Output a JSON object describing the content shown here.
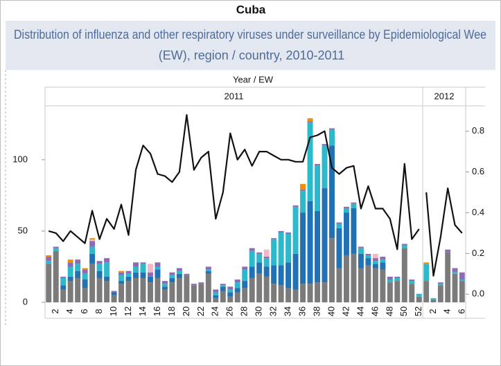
{
  "chart_data": {
    "type": "bar-line",
    "title": "Cuba",
    "subtitle": [
      "Distribution of influenza and other respiratory viruses under surveillance by Epidemiological Wee",
      "(EW), region / country, 2010-2011"
    ],
    "x_title": "Year  /  EW",
    "ylim": [
      0,
      130
    ],
    "yticks": [
      0,
      50,
      100
    ],
    "y2lim": [
      -0.04,
      0.87
    ],
    "y2ticks": [
      {
        "value": 0,
        "label": "0.0"
      },
      0.2,
      0.4,
      0.6,
      0.8
    ],
    "line_color": "#111111",
    "panels": [
      {
        "label": "2011",
        "categories": [
          null,
          "2",
          null,
          "4",
          null,
          "6",
          null,
          "8",
          null,
          "10",
          null,
          "12",
          null,
          "14",
          null,
          "16",
          null,
          "18",
          null,
          "20",
          null,
          "22",
          null,
          "24",
          null,
          "26",
          null,
          "28",
          null,
          "30",
          null,
          "32",
          null,
          "34",
          null,
          "36",
          null,
          "38",
          null,
          "40",
          null,
          "42",
          null,
          "44",
          null,
          "46",
          null,
          "48",
          null,
          "50",
          null,
          "52"
        ],
        "series": [
          {
            "color": "#7b7b7b",
            "values": [
              27,
              36,
              9,
              15,
              17,
              10,
              27,
              17,
              15,
              5,
              13,
              15,
              17,
              17,
              14,
              17,
              9,
              14,
              17,
              19,
              12,
              13,
              20,
              3,
              8,
              4,
              7,
              10,
              17,
              20,
              18,
              13,
              12,
              10,
              9,
              13,
              13,
              14,
              14,
              45,
              24,
              33,
              34,
              24,
              26,
              24,
              23,
              14,
              15,
              38,
              13,
              4
            ]
          },
          {
            "color": "#2171b5",
            "values": [
              0,
              0,
              3,
              3,
              5,
              6,
              7,
              5,
              3,
              2,
              2,
              3,
              4,
              4,
              4,
              6,
              2,
              3,
              3,
              0,
              0,
              0,
              2,
              2,
              3,
              3,
              3,
              5,
              8,
              8,
              7,
              13,
              14,
              18,
              25,
              50,
              58,
              50,
              66,
              65,
              28,
              30,
              32,
              10,
              5,
              3,
              5,
              0,
              0,
              0,
              0,
              0
            ]
          },
          {
            "color": "#2cb9cc",
            "values": [
              2,
              2,
              5,
              7,
              5,
              4,
              5,
              5,
              10,
              0,
              4,
              2,
              4,
              6,
              0,
              2,
              2,
              2,
              2,
              0,
              0,
              0,
              1,
              2,
              1,
              2,
              4,
              8,
              11,
              6,
              6,
              18,
              23,
              20,
              33,
              15,
              55,
              32,
              30,
              11,
              3,
              3,
              3,
              4,
              2,
              2,
              2,
              2,
              2,
              2,
              2,
              2
            ]
          },
          {
            "color": "#8e6cb5",
            "values": [
              3,
              1,
              1,
              3,
              3,
              3,
              4,
              2,
              3,
              1,
              2,
              2,
              3,
              1,
              3,
              3,
              2,
              2,
              2,
              1,
              1,
              1,
              2,
              2,
              1,
              2,
              2,
              2,
              2,
              1,
              1,
              1,
              1,
              1,
              1,
              1,
              1,
              1,
              1,
              1,
              1,
              1,
              1,
              1,
              1,
              2,
              2,
              2,
              1,
              1,
              1,
              0
            ]
          },
          {
            "color": "#f4b6c8",
            "values": [
              0,
              0,
              0,
              0,
              0,
              0,
              1,
              0,
              0,
              0,
              0,
              0,
              0,
              0,
              6,
              0,
              0,
              0,
              0,
              0,
              0,
              0,
              0,
              0,
              0,
              0,
              0,
              0,
              0,
              0,
              5,
              0,
              0,
              0,
              0,
              0,
              0,
              0,
              0,
              0,
              0,
              0,
              0,
              0,
              0,
              3,
              0,
              0,
              0,
              0,
              0,
              0
            ]
          },
          {
            "color": "#f28e00",
            "values": [
              1,
              0,
              0,
              2,
              0,
              1,
              1,
              0,
              0,
              0,
              1,
              0,
              0,
              0,
              0,
              0,
              0,
              0,
              0,
              0,
              0,
              0,
              0,
              0,
              0,
              0,
              0,
              0,
              0,
              0,
              0,
              0,
              0,
              0,
              0,
              4,
              2,
              0,
              0,
              0,
              0,
              0,
              0,
              0,
              0,
              0,
              0,
              0,
              0,
              0,
              0,
              0
            ]
          }
        ],
        "line": [
          0.31,
          0.3,
          0.26,
          0.31,
          0.28,
          0.25,
          0.41,
          0.27,
          0.37,
          0.32,
          0.44,
          0.29,
          0.61,
          0.73,
          0.69,
          0.59,
          0.58,
          0.55,
          0.6,
          0.88,
          0.61,
          0.67,
          0.7,
          0.37,
          0.5,
          0.79,
          0.66,
          0.71,
          0.63,
          0.7,
          0.7,
          0.68,
          0.66,
          0.66,
          0.65,
          0.65,
          0.77,
          0.78,
          0.8,
          0.62,
          0.59,
          0.62,
          0.63,
          0.42,
          0.53,
          0.42,
          0.42,
          0.37,
          0.22,
          0.64,
          0.27,
          0.32
        ]
      },
      {
        "label": "2012",
        "categories": [
          null,
          "2",
          null,
          "4",
          null,
          "6"
        ],
        "series": [
          {
            "color": "#7b7b7b",
            "values": [
              15,
              2,
              12,
              35,
              20,
              15
            ]
          },
          {
            "color": "#2171b5",
            "values": [
              0,
              0,
              0,
              0,
              0,
              0
            ]
          },
          {
            "color": "#2cb9cc",
            "values": [
              12,
              1,
              1,
              0,
              1,
              1
            ]
          },
          {
            "color": "#8e6cb5",
            "values": [
              0,
              0,
              1,
              2,
              3,
              5
            ]
          },
          {
            "color": "#f4b6c8",
            "values": [
              0,
              0,
              0,
              0,
              0,
              0
            ]
          },
          {
            "color": "#f28e00",
            "values": [
              1,
              0,
              0,
              0,
              0,
              0
            ]
          }
        ],
        "line": [
          0.5,
          0.09,
          0.28,
          0.52,
          0.34,
          0.3
        ]
      }
    ]
  }
}
